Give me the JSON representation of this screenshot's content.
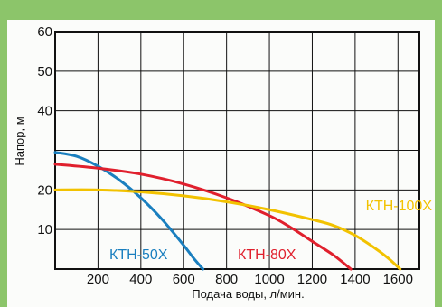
{
  "chart_data": {
    "type": "line",
    "xlabel": "Подача воды, л/мин.",
    "ylabel": "Напор, м",
    "xlim": [
      0,
      1700
    ],
    "ylim": [
      0,
      60
    ],
    "x_ticks": [
      200,
      400,
      600,
      800,
      1000,
      1200,
      1400,
      1600
    ],
    "y_ticks": [
      10,
      20,
      40,
      50,
      60
    ],
    "grid": true,
    "series": [
      {
        "name": "КТН-50Х",
        "color": "#1a7fbf",
        "x": [
          0,
          100,
          200,
          300,
          400,
          500,
          600,
          650,
          690
        ],
        "y": [
          29.5,
          28.5,
          26,
          22.5,
          18,
          12.5,
          6,
          2.5,
          0
        ]
      },
      {
        "name": "КТН-80Х",
        "color": "#e0202d",
        "x": [
          0,
          200,
          400,
          600,
          800,
          1000,
          1100,
          1200,
          1300,
          1380
        ],
        "y": [
          26.5,
          25.5,
          24,
          21.5,
          18,
          13.5,
          10.5,
          7,
          3.5,
          0
        ]
      },
      {
        "name": "КТН-100Х",
        "color": "#f2c200",
        "x": [
          0,
          200,
          400,
          600,
          800,
          1000,
          1200,
          1300,
          1400,
          1500,
          1560,
          1610
        ],
        "y": [
          20,
          20,
          19.5,
          18.5,
          17,
          15,
          12.5,
          11,
          8.5,
          5,
          2.5,
          0
        ]
      }
    ]
  }
}
